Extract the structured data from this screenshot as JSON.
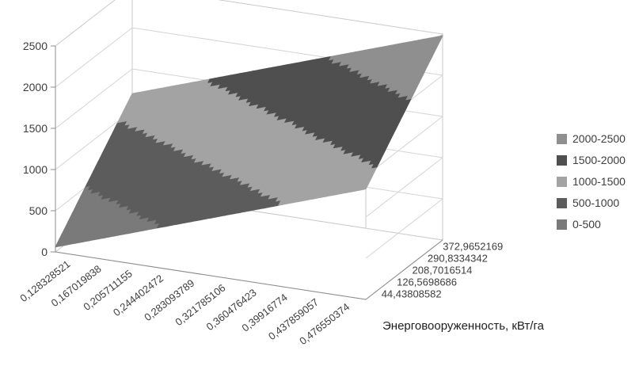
{
  "chart_data": {
    "type": "surface",
    "title": "",
    "xlabel": "Энерговооруженность, кВт/га",
    "ylabel": "",
    "ylim": [
      0,
      2500
    ],
    "y_tick_step": 500,
    "y_ticks": [
      0,
      500,
      1000,
      1500,
      2000,
      2500
    ],
    "grid": true,
    "legend_position": "right",
    "x_categories": [
      "0,128328521",
      "0,167019838",
      "0,205711155",
      "0,244402472",
      "0,283093789",
      "0,321785106",
      "0,360476423",
      "0,39916774",
      "0,437859057",
      "0,476550374"
    ],
    "depth_categories": [
      "44,43808582",
      "126,5698686",
      "208,7016514",
      "290,8334342",
      "372,9652169"
    ],
    "series": [
      {
        "name": "44,43808582",
        "values": [
          60,
          202,
          344,
          487,
          629,
          771,
          913,
          1056,
          1198,
          1340
        ]
      },
      {
        "name": "126,5698686",
        "values": [
          345,
          487,
          629,
          772,
          914,
          1056,
          1198,
          1341,
          1483,
          1625
        ]
      },
      {
        "name": "208,7016514",
        "values": [
          630,
          772,
          914,
          1057,
          1199,
          1341,
          1483,
          1626,
          1768,
          1910
        ]
      },
      {
        "name": "290,8334342",
        "values": [
          915,
          1057,
          1199,
          1342,
          1484,
          1626,
          1768,
          1911,
          2053,
          2195
        ]
      },
      {
        "name": "372,9652169",
        "values": [
          1200,
          1342,
          1484,
          1627,
          1769,
          1911,
          2053,
          2196,
          2338,
          2480
        ]
      }
    ],
    "band_colors": [
      "#7a7a7a",
      "#5c5c5c",
      "#a3a3a3",
      "#4f4f4f",
      "#8f8f8f"
    ],
    "legend": [
      {
        "label": "2000-2500",
        "color": "#8f8f8f"
      },
      {
        "label": "1500-2000",
        "color": "#4f4f4f"
      },
      {
        "label": "1000-1500",
        "color": "#a3a3a3"
      },
      {
        "label": "500-1000",
        "color": "#5c5c5c"
      },
      {
        "label": "0-500",
        "color": "#7a7a7a"
      }
    ],
    "colors": {
      "wall_stroke": "#c9c9c9",
      "gridline": "#d4d4d4",
      "axis": "#8c8c8c",
      "tick_text": "#3d3d3d"
    }
  }
}
